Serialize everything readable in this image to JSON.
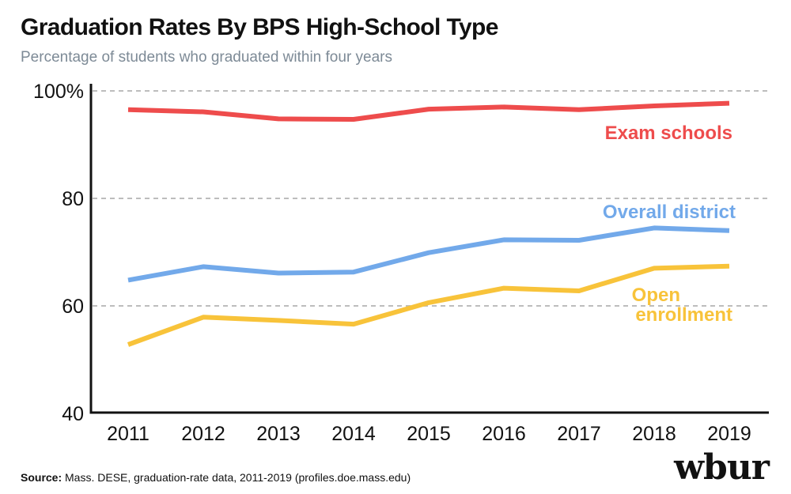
{
  "header": {
    "title": "Graduation Rates By BPS High-School Type",
    "subtitle": "Percentage of students who graduated within four years"
  },
  "footer": {
    "source_label": "Source:",
    "source_text": " Mass. DESE, graduation-rate data, 2011-2019 (profiles.doe.mass.edu)",
    "brand": "wbur"
  },
  "chart_data": {
    "type": "line",
    "title": "Graduation Rates By BPS High-School Type",
    "subtitle": "Percentage of students who graduated within four years",
    "xlabel": "",
    "ylabel": "",
    "x": [
      "2011",
      "2012",
      "2013",
      "2014",
      "2015",
      "2016",
      "2017",
      "2018",
      "2019"
    ],
    "ylim": [
      40,
      100
    ],
    "yticks": [
      40,
      60,
      80,
      100
    ],
    "ytick_labels": [
      "40",
      "60",
      "80",
      "100%"
    ],
    "grid": "horizontal dashed at 60, 80, 100",
    "legend": "direct labels at right end of lines",
    "series": [
      {
        "name": "Exam schools",
        "color": "#ee4c4c",
        "values": [
          96.5,
          96.1,
          94.8,
          94.7,
          96.6,
          97.0,
          96.5,
          97.2,
          97.7
        ]
      },
      {
        "name": "Overall district",
        "color": "#72a9ea",
        "values": [
          64.8,
          67.3,
          66.1,
          66.3,
          69.9,
          72.3,
          72.2,
          74.5,
          74.0
        ]
      },
      {
        "name": "Open enrollment",
        "label_lines": [
          "Open",
          "enrollment"
        ],
        "color": "#f8c33a",
        "values": [
          52.8,
          57.9,
          57.3,
          56.6,
          60.6,
          63.3,
          62.8,
          67.0,
          67.4
        ]
      }
    ]
  }
}
